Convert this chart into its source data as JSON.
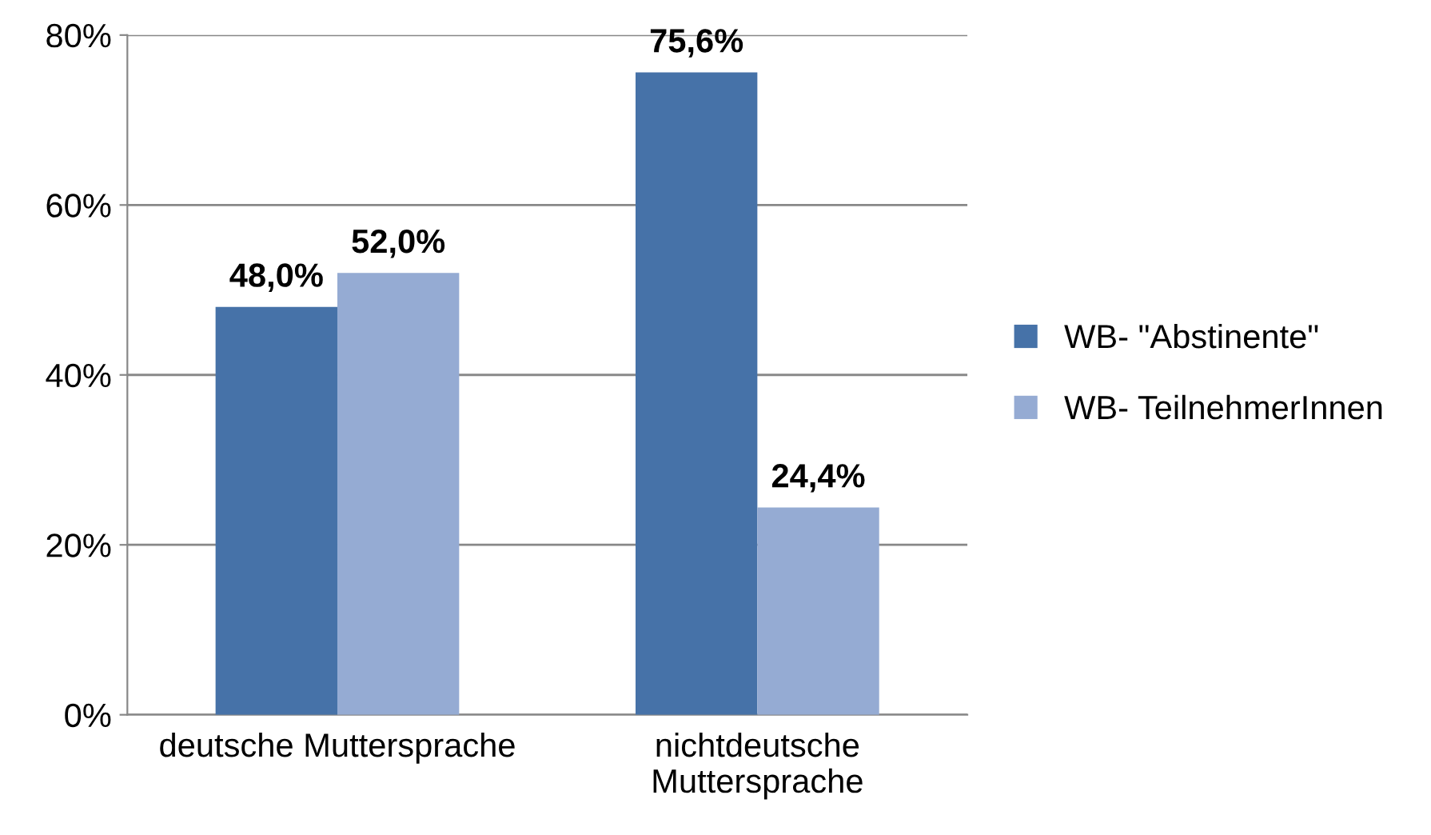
{
  "chart_data": {
    "type": "bar",
    "categories": [
      "deutsche Muttersprache",
      "nichtdeutsche\nMuttersprache"
    ],
    "series": [
      {
        "name": "WB- \"Abstinente\"",
        "color": "#4672a8",
        "values": [
          48.0,
          75.6
        ],
        "value_labels": [
          "48,0%",
          "75,6%"
        ]
      },
      {
        "name": "WB- TeilnehmerInnen",
        "color": "#95abd3",
        "values": [
          52.0,
          24.4
        ],
        "value_labels": [
          "52,0%",
          "24,4%"
        ]
      }
    ],
    "ylim": [
      0,
      80
    ],
    "yticks": [
      {
        "value": 0,
        "label": "0%"
      },
      {
        "value": 20,
        "label": "20%"
      },
      {
        "value": 40,
        "label": "40%"
      },
      {
        "value": 60,
        "label": "60%"
      },
      {
        "value": 80,
        "label": "80%"
      }
    ],
    "grid": "y",
    "legend": "right"
  }
}
